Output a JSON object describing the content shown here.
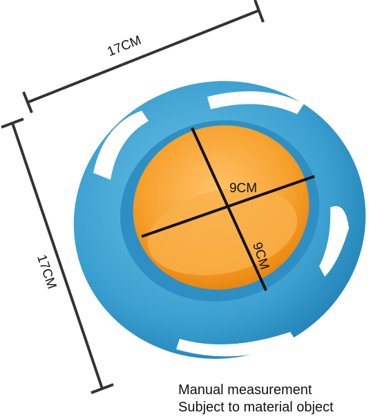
{
  "dimensions": {
    "overall_width": "17CM",
    "overall_depth": "17CM",
    "bowl_width": "9CM",
    "bowl_depth": "9CM"
  },
  "caption": {
    "line1": "Manual measurement",
    "line2": "Subject to material object"
  }
}
